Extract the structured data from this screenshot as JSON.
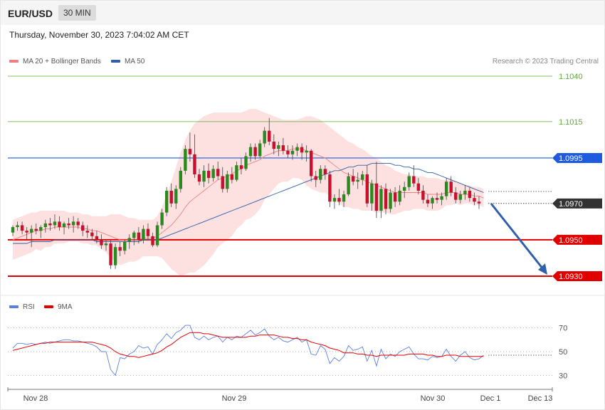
{
  "header": {
    "symbol": "EUR/USD",
    "timeframe": "30 MIN",
    "datetime": "Thursday, November 30, 2023 7:04:02 AM CET"
  },
  "legend": {
    "ma20_label": "MA 20 + Bollinger Bands",
    "ma20_color": "#f08080",
    "ma50_label": "MA 50",
    "ma50_color": "#2e5fa8",
    "rsi_label": "RSI",
    "rsi_color": "#5b7fe0",
    "ma9_label": "9MA",
    "ma9_color": "#e00000",
    "copyright": "Research © 2023 Trading Central"
  },
  "chart_data": {
    "type": "candlestick",
    "price_axis": {
      "ylim": [
        1.0918,
        1.1066
      ]
    },
    "levels": [
      {
        "label": "1.1040",
        "value": 1.104,
        "color": "#5aae2a",
        "style": "text"
      },
      {
        "label": "1.1015",
        "value": 1.1015,
        "color": "#5aae2a",
        "style": "text"
      },
      {
        "label": "1.0995",
        "value": 1.0995,
        "color": "#1e5be0",
        "style": "tag"
      },
      {
        "label": "1.0970",
        "value": 1.097,
        "color": "#333333",
        "style": "tag"
      },
      {
        "label": "1.0950",
        "value": 1.095,
        "color": "#e00000",
        "style": "tag"
      },
      {
        "label": "1.0930",
        "value": 1.093,
        "color": "#e00000",
        "style": "tag"
      }
    ],
    "forecast_arrow": {
      "from": [
        1.097
      ],
      "to": [
        1.093
      ]
    },
    "x_labels": [
      "Nov 28",
      "Nov 29",
      "Nov 30",
      "Dec 1",
      "Dec 13"
    ],
    "rsi_axis": {
      "ticks": [
        "70",
        "50",
        "30"
      ],
      "ylim": [
        20,
        80
      ]
    },
    "candles": [
      [
        1.0954,
        1.0958,
        1.0952,
        1.0957
      ],
      [
        1.0957,
        1.096,
        1.0955,
        1.0958
      ],
      [
        1.0958,
        1.096,
        1.0953,
        1.0955
      ],
      [
        1.0955,
        1.0957,
        1.095,
        1.0954
      ],
      [
        1.0954,
        1.0958,
        1.0946,
        1.0956
      ],
      [
        1.0956,
        1.0959,
        1.0953,
        1.0955
      ],
      [
        1.0955,
        1.0958,
        1.0951,
        1.0957
      ],
      [
        1.0957,
        1.0961,
        1.0954,
        1.0959
      ],
      [
        1.0959,
        1.0962,
        1.0955,
        1.0958
      ],
      [
        1.0958,
        1.0964,
        1.0956,
        1.096
      ],
      [
        1.096,
        1.0963,
        1.0955,
        1.0957
      ],
      [
        1.0957,
        1.096,
        1.0953,
        1.0959
      ],
      [
        1.0959,
        1.0962,
        1.0956,
        1.0958
      ],
      [
        1.0958,
        1.0963,
        1.0954,
        1.096
      ],
      [
        1.096,
        1.0962,
        1.0956,
        1.0958
      ],
      [
        1.0958,
        1.096,
        1.0952,
        1.0955
      ],
      [
        1.0955,
        1.0958,
        1.0951,
        1.0954
      ],
      [
        1.0954,
        1.0956,
        1.095,
        1.0952
      ],
      [
        1.0952,
        1.0955,
        1.0948,
        1.095
      ],
      [
        1.095,
        1.0953,
        1.0945,
        1.0947
      ],
      [
        1.0947,
        1.095,
        1.0944,
        1.0948
      ],
      [
        1.0948,
        1.095,
        1.0934,
        1.0936
      ],
      [
        1.0936,
        1.0948,
        1.0934,
        1.0946
      ],
      [
        1.0946,
        1.0949,
        1.0941,
        1.0944
      ],
      [
        1.0944,
        1.095,
        1.0942,
        1.0949
      ],
      [
        1.0949,
        1.0953,
        1.0945,
        1.0951
      ],
      [
        1.0951,
        1.0955,
        1.0947,
        1.0954
      ],
      [
        1.0954,
        1.0957,
        1.0948,
        1.095
      ],
      [
        1.095,
        1.0958,
        1.0948,
        1.0956
      ],
      [
        1.0956,
        1.0959,
        1.095,
        1.0952
      ],
      [
        1.0952,
        1.0954,
        1.0946,
        1.0947
      ],
      [
        1.0947,
        1.096,
        1.0946,
        1.0958
      ],
      [
        1.0958,
        1.0967,
        1.0956,
        1.0965
      ],
      [
        1.0965,
        1.0979,
        1.0963,
        1.0977
      ],
      [
        1.0977,
        1.0981,
        1.0968,
        1.097
      ],
      [
        1.097,
        1.098,
        1.0967,
        1.0978
      ],
      [
        1.0978,
        1.099,
        1.0976,
        1.0988
      ],
      [
        1.0988,
        1.1002,
        1.0986,
        1.1
      ],
      [
        1.1,
        1.1009,
        1.0993,
        1.0997
      ],
      [
        1.0997,
        1.1008,
        1.0984,
        1.0986
      ],
      [
        1.0986,
        1.0989,
        1.098,
        1.0982
      ],
      [
        1.0982,
        1.0991,
        1.0979,
        1.0988
      ],
      [
        1.0988,
        1.0992,
        1.0981,
        1.0984
      ],
      [
        1.0984,
        1.0991,
        1.0982,
        1.0989
      ],
      [
        1.0989,
        1.0993,
        1.0983,
        1.0985
      ],
      [
        1.0985,
        1.099,
        1.0976,
        1.0978
      ],
      [
        1.0978,
        1.0988,
        1.0976,
        1.0986
      ],
      [
        1.0986,
        1.099,
        1.0981,
        1.0983
      ],
      [
        1.0983,
        1.0993,
        1.0982,
        1.0991
      ],
      [
        1.0991,
        1.0995,
        1.0986,
        1.0989
      ],
      [
        1.0989,
        1.0998,
        1.0988,
        1.0996
      ],
      [
        1.0996,
        1.1003,
        1.0993,
        1.1001
      ],
      [
        1.1001,
        1.1003,
        1.0994,
        1.0996
      ],
      [
        1.0996,
        1.1005,
        1.0995,
        1.1003
      ],
      [
        1.1003,
        1.1012,
        1.1001,
        1.101
      ],
      [
        1.101,
        1.1017,
        1.1002,
        1.1004
      ],
      [
        1.1004,
        1.1008,
        1.0997,
        1.1
      ],
      [
        1.1,
        1.1004,
        1.0996,
        1.1002
      ],
      [
        1.1002,
        1.1006,
        1.0997,
        1.0999
      ],
      [
        1.0999,
        1.1002,
        1.0995,
        1.0997
      ],
      [
        1.0997,
        1.1002,
        1.0994,
        1.0999
      ],
      [
        1.0999,
        1.1003,
        1.0996,
        1.1001
      ],
      [
        1.1001,
        1.1003,
        1.0994,
        1.0998
      ],
      [
        1.0998,
        1.1002,
        1.0993,
        1.0999
      ],
      [
        1.0999,
        1.1,
        1.0982,
        1.0985
      ],
      [
        1.0985,
        1.0988,
        1.0979,
        1.0983
      ],
      [
        1.0983,
        1.0991,
        1.0981,
        1.0989
      ],
      [
        1.0989,
        1.0991,
        1.0983,
        1.0986
      ],
      [
        1.0986,
        1.0988,
        1.0968,
        1.0971
      ],
      [
        1.0971,
        1.0975,
        1.0967,
        1.0973
      ],
      [
        1.0973,
        1.0978,
        1.0969,
        1.0971
      ],
      [
        1.0971,
        1.0977,
        1.0968,
        1.0975
      ],
      [
        1.0975,
        1.0987,
        1.0974,
        1.0985
      ],
      [
        1.0985,
        1.0989,
        1.098,
        1.0982
      ],
      [
        1.0982,
        1.0987,
        1.0978,
        1.0983
      ],
      [
        1.0983,
        1.0988,
        1.098,
        1.0986
      ],
      [
        1.0986,
        1.0991,
        1.0968,
        1.097
      ],
      [
        1.097,
        1.0983,
        1.0966,
        1.0981
      ],
      [
        1.0981,
        1.0993,
        1.0962,
        1.0966
      ],
      [
        1.0966,
        1.098,
        1.0962,
        1.0978
      ],
      [
        1.0978,
        1.0981,
        1.0964,
        1.0967
      ],
      [
        1.0967,
        1.0978,
        1.0965,
        1.0976
      ],
      [
        1.0976,
        1.0979,
        1.0968,
        1.0971
      ],
      [
        1.0971,
        1.098,
        1.0969,
        1.0977
      ],
      [
        1.0977,
        1.0982,
        1.0973,
        1.0979
      ],
      [
        1.0979,
        1.0987,
        1.0977,
        1.0985
      ],
      [
        1.0985,
        1.0991,
        1.0979,
        1.0981
      ],
      [
        1.0981,
        1.0984,
        1.0975,
        1.0977
      ],
      [
        1.0977,
        1.098,
        1.097,
        1.0972
      ],
      [
        1.0972,
        1.0975,
        1.0968,
        1.097
      ],
      [
        1.097,
        1.0974,
        1.0967,
        1.0973
      ],
      [
        1.0973,
        1.0976,
        1.097,
        1.0972
      ],
      [
        1.0972,
        1.0976,
        1.0969,
        1.0974
      ],
      [
        1.0974,
        1.0984,
        1.0972,
        1.0982
      ],
      [
        1.0982,
        1.0985,
        1.0974,
        1.0976
      ],
      [
        1.0976,
        1.0979,
        1.097,
        1.0972
      ],
      [
        1.0972,
        1.0977,
        1.097,
        1.0975
      ],
      [
        1.0975,
        1.098,
        1.0972,
        1.0977
      ],
      [
        1.0977,
        1.0979,
        1.0971,
        1.0973
      ],
      [
        1.0973,
        1.0976,
        1.0969,
        1.0971
      ],
      [
        1.0971,
        1.0974,
        1.0967,
        1.097
      ]
    ],
    "ma20": [
      1.095,
      1.0951,
      1.0952,
      1.0953,
      1.0954,
      1.0955,
      1.0955,
      1.0956,
      1.0956,
      1.0957,
      1.0957,
      1.0957,
      1.0957,
      1.0957,
      1.0957,
      1.0956,
      1.0956,
      1.0955,
      1.0955,
      1.0954,
      1.0953,
      1.0952,
      1.0951,
      1.095,
      1.095,
      1.095,
      1.095,
      1.095,
      1.0951,
      1.0951,
      1.0951,
      1.0952,
      1.0954,
      1.0956,
      1.0958,
      1.0961,
      1.0964,
      1.0968,
      1.0971,
      1.0973,
      1.0975,
      1.0977,
      1.0979,
      1.0981,
      1.0983,
      1.0984,
      1.0985,
      1.0986,
      1.0988,
      1.0989,
      1.0991,
      1.0992,
      1.0993,
      1.0994,
      1.0996,
      1.0997,
      1.0998,
      1.0999,
      1.0999,
      1.0999,
      1.1,
      1.1,
      1.1,
      1.0999,
      1.0998,
      1.0997,
      1.0996,
      1.0995,
      1.0993,
      1.0991,
      1.0989,
      1.0987,
      1.0986,
      1.0985,
      1.0984,
      1.0983,
      1.0982,
      1.0981,
      1.098,
      1.0979,
      1.0978,
      1.0977,
      1.0976,
      1.0976,
      1.0976,
      1.0976,
      1.0976,
      1.0976,
      1.0976,
      1.0975,
      1.0975,
      1.0975,
      1.0975,
      1.0976,
      1.0976,
      1.0976,
      1.0975,
      1.0975,
      1.0975,
      1.0974,
      1.0974,
      1.0973
    ],
    "bb_upper": [
      1.0961,
      1.0962,
      1.0963,
      1.0964,
      1.0965,
      1.0965,
      1.0966,
      1.0966,
      1.0966,
      1.0966,
      1.0966,
      1.0966,
      1.0965,
      1.0965,
      1.0965,
      1.0964,
      1.0964,
      1.0963,
      1.0963,
      1.0963,
      1.0963,
      1.0964,
      1.0964,
      1.0964,
      1.0963,
      1.0962,
      1.0962,
      1.0961,
      1.0961,
      1.0961,
      1.0961,
      1.0963,
      1.0968,
      1.0975,
      1.0982,
      1.099,
      1.0998,
      1.1005,
      1.101,
      1.1014,
      1.1016,
      1.1018,
      1.1019,
      1.102,
      1.102,
      1.102,
      1.102,
      1.102,
      1.102,
      1.102,
      1.1021,
      1.1022,
      1.1022,
      1.1021,
      1.102,
      1.1019,
      1.1018,
      1.1017,
      1.1016,
      1.1016,
      1.1016,
      1.1016,
      1.1017,
      1.1018,
      1.1018,
      1.1017,
      1.1016,
      1.1014,
      1.1012,
      1.101,
      1.1008,
      1.1006,
      1.1004,
      1.1003,
      1.1001,
      1.1,
      1.0998,
      1.0996,
      1.0995,
      1.0993,
      1.0991,
      1.099,
      1.0988,
      1.0987,
      1.0986,
      1.0986,
      1.0985,
      1.0985,
      1.0985,
      1.0984,
      1.0984,
      1.0984,
      1.0983,
      1.0983,
      1.0983,
      1.0982,
      1.0981,
      1.098,
      1.098,
      1.0979,
      1.0979,
      1.0978
    ],
    "bb_lower": [
      1.0939,
      1.094,
      1.0941,
      1.0942,
      1.0943,
      1.0945,
      1.0944,
      1.0946,
      1.0946,
      1.0948,
      1.0948,
      1.0948,
      1.0949,
      1.0949,
      1.0949,
      1.0948,
      1.0948,
      1.0947,
      1.0947,
      1.0945,
      1.0943,
      1.094,
      1.0938,
      1.0936,
      1.0937,
      1.0938,
      1.0938,
      1.0939,
      1.0941,
      1.0941,
      1.0941,
      1.0941,
      1.094,
      1.0937,
      1.0934,
      1.0932,
      1.093,
      1.0931,
      1.0932,
      1.0932,
      1.0934,
      1.0936,
      1.0939,
      1.0942,
      1.0946,
      1.0948,
      1.095,
      1.0952,
      1.0956,
      1.0958,
      1.0961,
      1.0962,
      1.0964,
      1.0967,
      1.0972,
      1.0975,
      1.0978,
      1.0981,
      1.0982,
      1.0982,
      1.0984,
      1.0984,
      1.0983,
      1.098,
      1.0978,
      1.0977,
      1.0976,
      1.0976,
      1.0974,
      1.0972,
      1.097,
      1.0968,
      1.0968,
      1.0967,
      1.0967,
      1.0966,
      1.0966,
      1.0966,
      1.0965,
      1.0965,
      1.0965,
      1.0964,
      1.0964,
      1.0965,
      1.0966,
      1.0966,
      1.0967,
      1.0967,
      1.0967,
      1.0966,
      1.0966,
      1.0966,
      1.0967,
      1.0969,
      1.0969,
      1.097,
      1.0969,
      1.097,
      1.097,
      1.0969,
      1.0969,
      1.0968
    ],
    "ma50": [
      1.0948,
      1.0948,
      1.0948,
      1.0948,
      1.0949,
      1.0949,
      1.0949,
      1.0949,
      1.0949,
      1.095,
      1.095,
      1.095,
      1.095,
      1.095,
      1.095,
      1.095,
      1.095,
      1.095,
      1.0949,
      1.0949,
      1.0949,
      1.0949,
      1.0949,
      1.0949,
      1.0949,
      1.0949,
      1.0949,
      1.0949,
      1.095,
      1.095,
      1.095,
      1.095,
      1.0951,
      1.0952,
      1.0953,
      1.0954,
      1.0955,
      1.0956,
      1.0957,
      1.0958,
      1.0959,
      1.096,
      1.0961,
      1.0962,
      1.0963,
      1.0964,
      1.0965,
      1.0966,
      1.0967,
      1.0968,
      1.0969,
      1.097,
      1.0971,
      1.0972,
      1.0973,
      1.0974,
      1.0975,
      1.0976,
      1.0977,
      1.0978,
      1.0979,
      1.098,
      1.0981,
      1.0982,
      1.0983,
      1.0984,
      1.0985,
      1.0986,
      1.0987,
      1.0988,
      1.0988,
      1.0989,
      1.099,
      1.099,
      1.0991,
      1.0991,
      1.0991,
      1.0992,
      1.0992,
      1.0992,
      1.0992,
      1.0992,
      1.0991,
      1.0991,
      1.099,
      1.099,
      1.0989,
      1.0989,
      1.0988,
      1.0987,
      1.0987,
      1.0986,
      1.0985,
      1.0984,
      1.0983,
      1.0982,
      1.0981,
      1.098,
      1.0979,
      1.0978,
      1.0977,
      1.0976
    ],
    "rsi": [
      53,
      57,
      57,
      56,
      57,
      56,
      57,
      58,
      57,
      58,
      59,
      60,
      60,
      59,
      59,
      58,
      57,
      56,
      54,
      50,
      50,
      35,
      30,
      45,
      44,
      48,
      50,
      55,
      53,
      54,
      48,
      56,
      60,
      65,
      61,
      66,
      68,
      72,
      72,
      62,
      60,
      63,
      60,
      62,
      63,
      58,
      62,
      60,
      63,
      62,
      65,
      68,
      64,
      66,
      69,
      63,
      60,
      62,
      59,
      58,
      60,
      62,
      58,
      60,
      48,
      47,
      55,
      52,
      40,
      45,
      42,
      46,
      55,
      51,
      52,
      54,
      42,
      51,
      38,
      52,
      44,
      48,
      46,
      50,
      52,
      54,
      48,
      44,
      44,
      43,
      46,
      45,
      46,
      52,
      46,
      42,
      47,
      50,
      45,
      43,
      44,
      47
    ],
    "rsi_ma9": [
      51,
      52,
      53,
      54,
      55,
      56,
      57,
      57,
      58,
      58,
      58,
      58,
      58,
      58,
      58,
      58,
      58,
      58,
      57,
      56,
      55,
      53,
      50,
      48,
      47,
      46,
      46,
      45,
      46,
      47,
      48,
      49,
      51,
      54,
      56,
      59,
      62,
      64,
      66,
      66,
      66,
      65,
      65,
      64,
      63,
      62,
      62,
      62,
      62,
      62,
      62,
      63,
      63,
      64,
      64,
      64,
      64,
      63,
      62,
      62,
      61,
      61,
      60,
      60,
      58,
      57,
      56,
      55,
      53,
      52,
      51,
      49,
      49,
      49,
      48,
      48,
      47,
      47,
      46,
      47,
      47,
      47,
      47,
      47,
      47,
      48,
      48,
      48,
      48,
      47,
      47,
      46,
      46,
      47,
      47,
      47,
      46,
      46,
      46,
      46,
      46,
      46
    ]
  }
}
